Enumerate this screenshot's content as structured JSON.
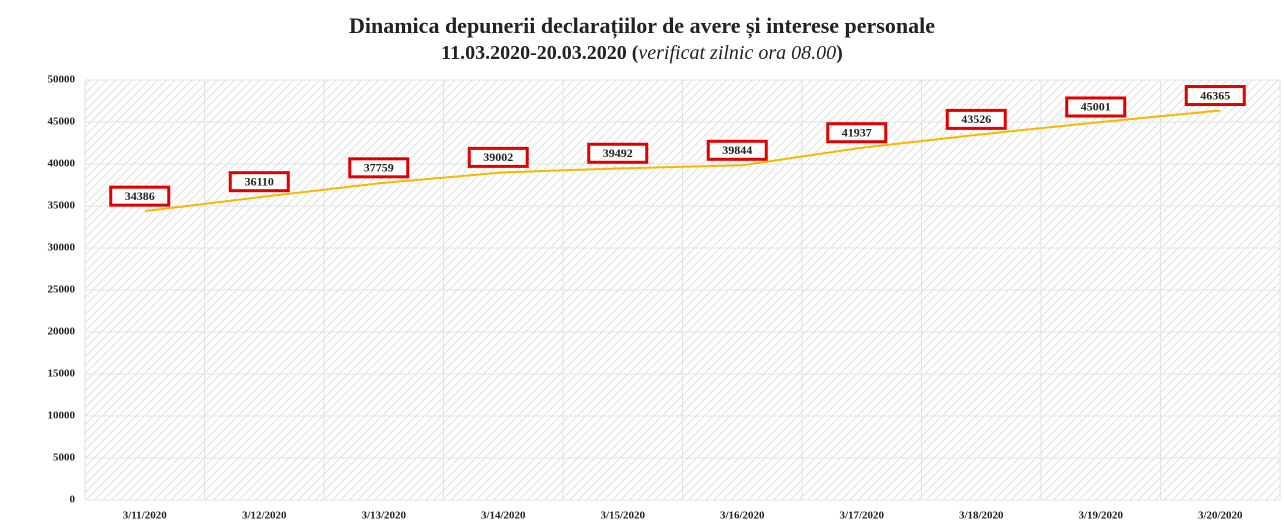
{
  "chart_data": {
    "type": "line",
    "title": "Dinamica depunerii declarațiilor de avere și interese personale",
    "subtitle_parts": [
      "11.03.2020-20.03.2020 (",
      "verificat zilnic ora 08.00",
      ")"
    ],
    "categories": [
      "3/11/2020",
      "3/12/2020",
      "3/13/2020",
      "3/14/2020",
      "3/15/2020",
      "3/16/2020",
      "3/17/2020",
      "3/18/2020",
      "3/19/2020",
      "3/20/2020"
    ],
    "series": [
      {
        "color": "#f5b800",
        "values": [
          34386,
          36110,
          37759,
          39002,
          39492,
          39844,
          41937,
          43526,
          45001,
          46365
        ]
      }
    ],
    "ylim": [
      0,
      50000
    ],
    "yticks": [
      0,
      5000,
      10000,
      15000,
      20000,
      25000,
      30000,
      35000,
      40000,
      45000,
      50000
    ],
    "grid": true
  }
}
